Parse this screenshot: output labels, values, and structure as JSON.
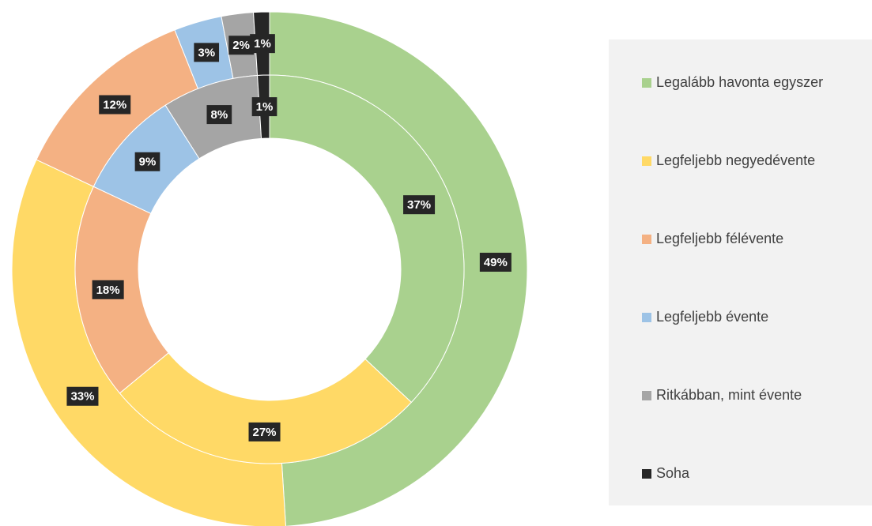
{
  "chart_data": {
    "type": "donut",
    "categories": [
      "Legalább havonta egyszer",
      "Legfeljebb negyedévente",
      "Legfeljebb félévente",
      "Legfeljebb évente",
      "Ritkábban, mint évente",
      "Soha"
    ],
    "colors": [
      "#a9d18e",
      "#ffd966",
      "#f4b183",
      "#9dc3e6",
      "#a5a5a5",
      "#262626"
    ],
    "series": [
      {
        "values": [
          49,
          33,
          12,
          3,
          2,
          1
        ],
        "value_labels": [
          "49%",
          "33%",
          "12%",
          "3%",
          "2%",
          "1%"
        ]
      },
      {
        "values": [
          37,
          27,
          18,
          9,
          8,
          1
        ],
        "value_labels": [
          "37%",
          "27%",
          "18%",
          "9%",
          "8%",
          "1%"
        ]
      }
    ],
    "legend": "right"
  }
}
